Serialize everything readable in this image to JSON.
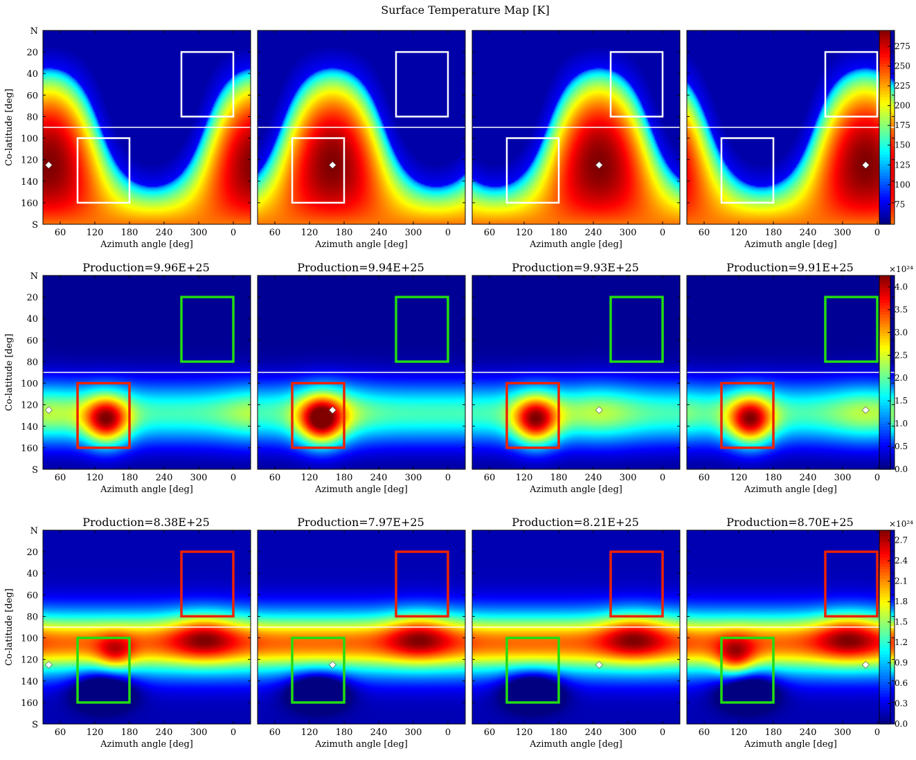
{
  "figure": {
    "title": "Surface Temperature Map [K]"
  },
  "chart_data": {
    "type": "heatmap",
    "grid": "off",
    "x_axis": {
      "label": "Azimuth angle [deg]",
      "ticks": [
        "60",
        "120",
        "180",
        "240",
        "300",
        "0"
      ],
      "range": [
        30,
        390
      ],
      "note_values": "tick 0 corresponds to 360 deg"
    },
    "y_axis": {
      "label": "Co-latitude [deg]",
      "ticks": [
        "N",
        "20",
        "40",
        "60",
        "80",
        "100",
        "120",
        "140",
        "160",
        "S"
      ],
      "range": [
        0,
        180
      ]
    },
    "equator_line_colatitude": 90,
    "regions": [
      {
        "name": "north",
        "lon_range": [
          270,
          360
        ],
        "colat_range": [
          20,
          80
        ]
      },
      {
        "name": "south",
        "lon_range": [
          90,
          180
        ],
        "colat_range": [
          100,
          160
        ]
      }
    ],
    "rows": [
      {
        "name": "temperature",
        "colorbar": {
          "label": "",
          "exponent": "",
          "ticks": [
            "75",
            "100",
            "125",
            "150",
            "175",
            "200",
            "225",
            "250",
            "275"
          ],
          "range": [
            50,
            295
          ]
        },
        "panel_titles": [
          "",
          "",
          "",
          ""
        ],
        "region_colors": {
          "north": "#ffffff",
          "south": "#ffffff"
        },
        "subsolar_longitudes": [
          40,
          160,
          250,
          340
        ],
        "subsolar_colatitude": 125
      },
      {
        "name": "production_1",
        "colorbar": {
          "label": "",
          "exponent": "×10²⁴",
          "ticks": [
            "0.0",
            "0.5",
            "1.0",
            "1.5",
            "2.0",
            "2.5",
            "3.0",
            "3.5",
            "4.0"
          ],
          "range": [
            0,
            4.25
          ]
        },
        "panel_titles": [
          "Production=9.96E+25",
          "Production=9.94E+25",
          "Production=9.93E+25",
          "Production=9.91E+25"
        ],
        "region_colors": {
          "north": "#22dd11",
          "south": "#ee2200"
        },
        "subsolar_longitudes": [
          40,
          160,
          250,
          340
        ],
        "subsolar_colatitude": 125
      },
      {
        "name": "production_2",
        "colorbar": {
          "label": "",
          "exponent": "×10²⁴",
          "ticks": [
            "0.0",
            "0.3",
            "0.6",
            "0.9",
            "1.2",
            "1.5",
            "1.8",
            "2.1",
            "2.4",
            "2.7"
          ],
          "range": [
            0,
            2.85
          ]
        },
        "panel_titles": [
          "Production=8.38E+25",
          "Production=7.97E+25",
          "Production=8.21E+25",
          "Production=8.70E+25"
        ],
        "region_colors": {
          "north": "#ee2200",
          "south": "#22dd11"
        },
        "subsolar_longitudes": [
          40,
          160,
          250,
          340
        ],
        "subsolar_colatitude": 125
      }
    ]
  }
}
